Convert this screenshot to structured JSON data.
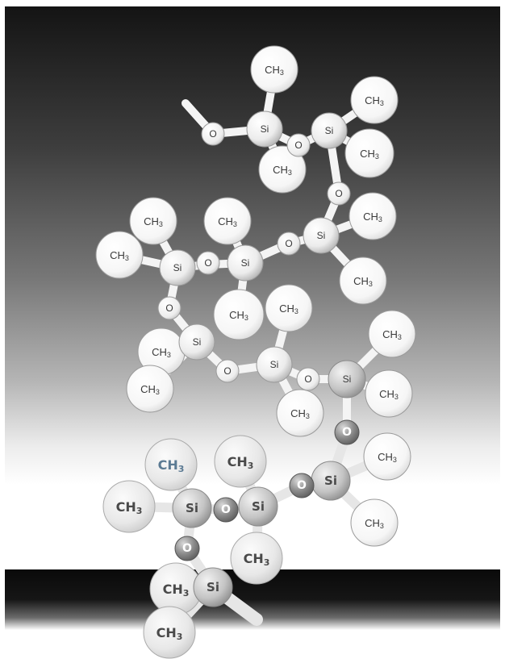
{
  "labels": {
    "methyl": "CH",
    "methyl_subscript": "3",
    "silicon": "Si",
    "oxygen": "O"
  }
}
